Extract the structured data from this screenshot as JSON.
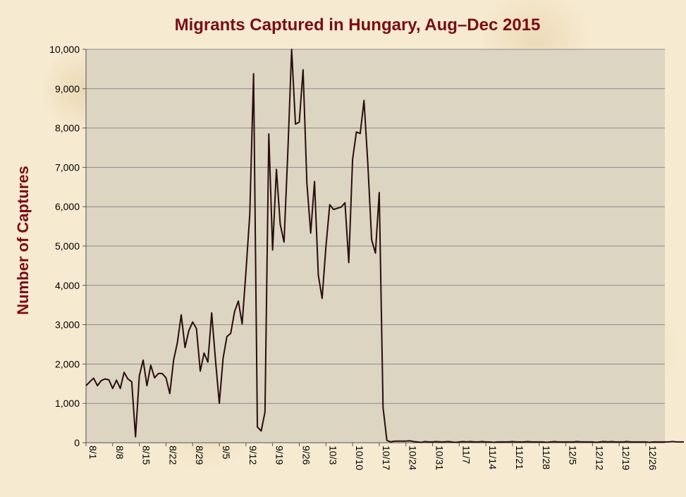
{
  "chart_data": {
    "type": "line",
    "title": "Migrants Captured in Hungary, Aug–Dec 2015",
    "xlabel": "",
    "ylabel": "Number of Captures",
    "ylim": [
      0,
      10000
    ],
    "y_ticks": [
      0,
      1000,
      2000,
      3000,
      4000,
      5000,
      6000,
      7000,
      8000,
      9000,
      10000
    ],
    "y_tick_labels": [
      "0",
      "1,000",
      "2,000",
      "3,000",
      "4,000",
      "5,000",
      "6,000",
      "7,000",
      "8,000",
      "9,000",
      "10,000"
    ],
    "x_tick_labels": [
      "8/1",
      "8/8",
      "8/15",
      "8/22",
      "8/29",
      "9/5",
      "9/12",
      "9/19",
      "9/26",
      "10/3",
      "10/10",
      "10/17",
      "10/24",
      "10/31",
      "11/7",
      "11/14",
      "11/21",
      "11/28",
      "12/5",
      "12/12",
      "12/19",
      "12/26"
    ],
    "x_range": [
      "2015-08-01",
      "2015-12-31"
    ],
    "grid": "horizontal",
    "colors": {
      "line": "#2a0d0d",
      "plot_background": "#dcd5c2",
      "gridline": "#8c8c8c",
      "title": "#7a0d14",
      "page_background": "#f6ead0"
    },
    "series": [
      {
        "values": [
          1450,
          1550,
          1640,
          1450,
          1580,
          1620,
          1600,
          1380,
          1590,
          1380,
          1790,
          1620,
          1550,
          150,
          1700,
          2100,
          1450,
          1970,
          1650,
          1760,
          1760,
          1650,
          1250,
          2100,
          2550,
          3250,
          2420,
          2850,
          3070,
          2900,
          1820,
          2280,
          2050,
          3300,
          2100,
          1000,
          2150,
          2700,
          2780,
          3330,
          3600,
          3020,
          4350,
          5800,
          9380,
          400,
          300,
          780,
          7850,
          4900,
          6950,
          5550,
          5100,
          7400,
          10000,
          8100,
          8150,
          9480,
          6600,
          5330,
          6640,
          4260,
          3670,
          4980,
          6050,
          5930,
          5960,
          5990,
          6100,
          4580,
          7200,
          7900,
          7860,
          8700,
          7100,
          5160,
          4820,
          6360,
          900,
          60,
          20,
          40,
          40,
          40,
          40,
          50,
          30,
          20,
          10,
          30,
          20,
          20,
          30,
          20,
          20,
          30,
          20,
          10,
          20,
          30,
          20,
          30,
          20,
          20,
          30,
          20,
          20,
          10,
          20,
          20,
          20,
          20,
          30,
          20,
          20,
          20,
          30,
          20,
          20,
          20,
          20,
          10,
          20,
          30,
          20,
          20,
          20,
          20,
          20,
          30,
          20,
          20,
          20,
          20,
          10,
          20,
          30,
          20,
          30,
          20,
          20,
          20,
          30,
          20,
          20,
          20,
          20,
          20,
          10,
          20,
          20,
          20,
          20,
          20,
          30,
          20,
          20,
          20
        ]
      }
    ]
  }
}
